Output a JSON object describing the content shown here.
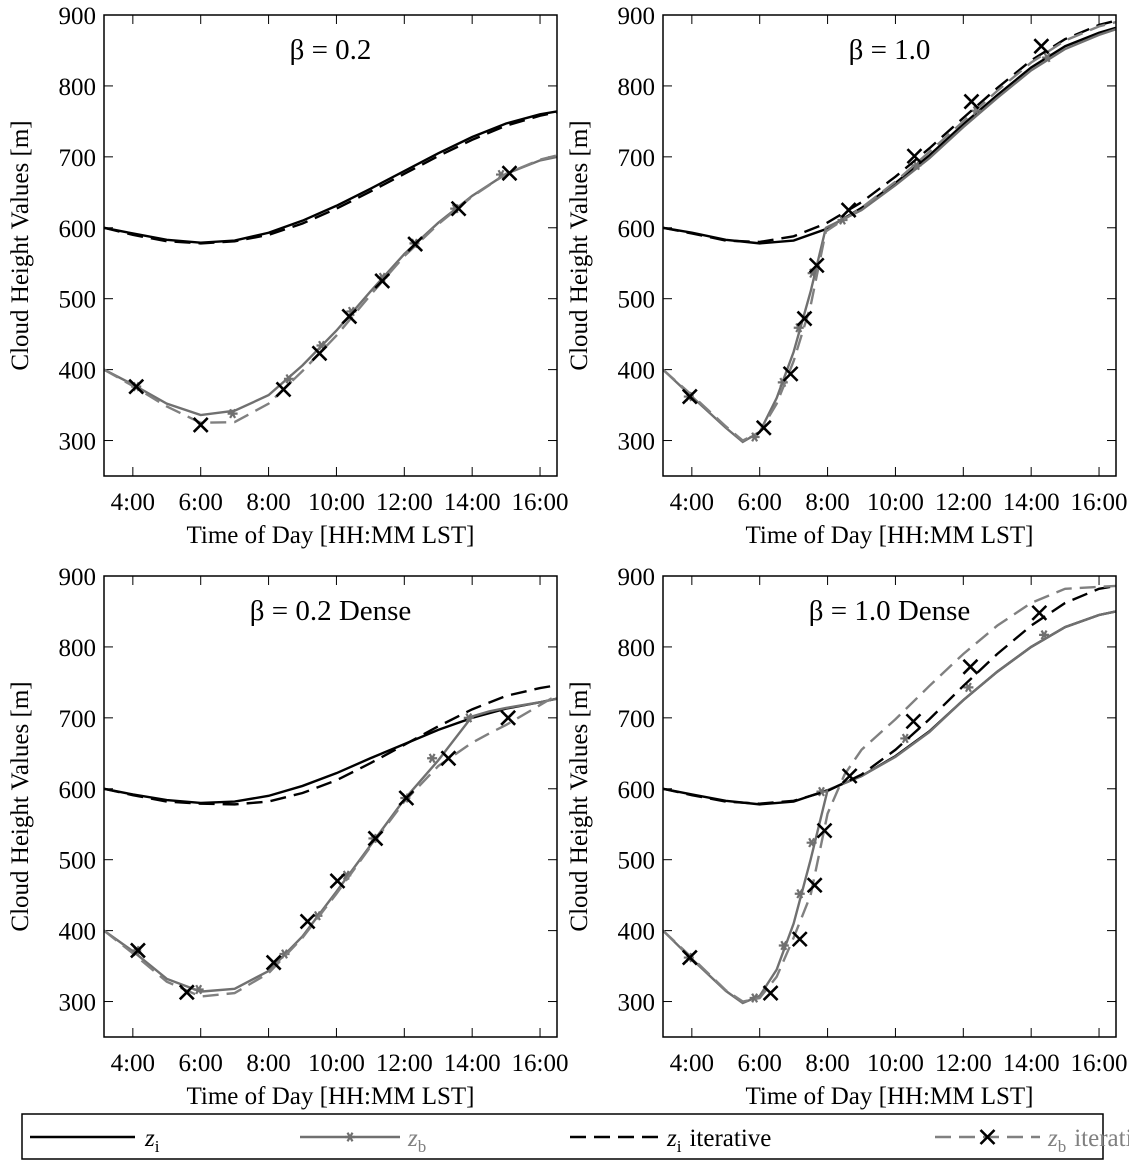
{
  "chart_data": [
    {
      "type": "line",
      "title": "β = 0.2",
      "xlabel": "Time of Day [HH:MM LST]",
      "ylabel": "Cloud Height Values [m]",
      "xlim": [
        3.15,
        16.5
      ],
      "xticks": [
        {
          "value": 4,
          "label": "4:00"
        },
        {
          "value": 6,
          "label": "6:00"
        },
        {
          "value": 8,
          "label": "8:00"
        },
        {
          "value": 10,
          "label": "10:00"
        },
        {
          "value": 12,
          "label": "12:00"
        },
        {
          "value": 14,
          "label": "14:00"
        },
        {
          "value": 16,
          "label": "16:00"
        }
      ],
      "ylim": [
        250,
        900
      ],
      "yticks": [
        300,
        400,
        500,
        600,
        700,
        800,
        900
      ],
      "series": [
        {
          "x": [
            3.15,
            4,
            5,
            6,
            7,
            8,
            9,
            10,
            11,
            12,
            13,
            14,
            15,
            16,
            16.5
          ],
          "values": [
            600,
            592,
            583,
            579,
            582,
            593,
            610,
            631,
            655,
            680,
            705,
            728,
            747,
            760,
            764
          ]
        },
        {
          "x": [
            3.15,
            4,
            5,
            6,
            7,
            8,
            9,
            10,
            11,
            12,
            13,
            14,
            15,
            16,
            16.5
          ],
          "values": [
            400,
            379,
            352,
            336,
            342,
            364,
            406,
            455,
            510,
            563,
            607,
            645,
            676,
            695,
            700
          ],
          "points": {
            "x": [
              4.1,
              6.94,
              8.6,
              9.56,
              10.44,
              11.35,
              12.3,
              13.5,
              14.85
            ],
            "values": [
              376,
              338,
              387,
              434,
              482,
              530,
              578,
              627,
              675
            ]
          }
        },
        {
          "x": [
            3.15,
            4,
            5,
            6,
            7,
            8,
            9,
            10,
            11,
            12,
            13,
            14,
            15,
            16,
            16.5
          ],
          "values": [
            600,
            590,
            581,
            578,
            581,
            590,
            606,
            627,
            651,
            676,
            701,
            724,
            744,
            758,
            763
          ]
        },
        {
          "x": [
            3.15,
            4,
            5,
            6,
            7,
            8,
            9,
            10,
            11,
            12,
            13,
            14,
            15,
            16,
            16.5
          ],
          "values": [
            400,
            377,
            348,
            325,
            326,
            352,
            398,
            448,
            505,
            560,
            605,
            644,
            676,
            696,
            702
          ],
          "points": {
            "x": [
              4.1,
              6.0,
              8.44,
              9.5,
              10.38,
              11.35,
              12.32,
              13.6,
              15.1
            ],
            "values": [
              376,
              322,
              372,
              423,
              475,
              525,
              577,
              627,
              677
            ]
          }
        }
      ]
    },
    {
      "type": "line",
      "title": "β = 1.0",
      "xlabel": "Time of Day [HH:MM LST]",
      "ylabel": "Cloud Height Values [m]",
      "xlim": [
        3.15,
        16.5
      ],
      "xticks": [
        {
          "value": 4,
          "label": "4:00"
        },
        {
          "value": 6,
          "label": "6:00"
        },
        {
          "value": 8,
          "label": "8:00"
        },
        {
          "value": 10,
          "label": "10:00"
        },
        {
          "value": 12,
          "label": "12:00"
        },
        {
          "value": 14,
          "label": "14:00"
        },
        {
          "value": 16,
          "label": "16:00"
        }
      ],
      "ylim": [
        250,
        900
      ],
      "yticks": [
        300,
        400,
        500,
        600,
        700,
        800,
        900
      ],
      "series": [
        {
          "x": [
            3.15,
            4,
            5,
            6,
            7,
            7.95,
            9,
            10,
            11,
            12,
            13,
            14,
            15,
            16,
            16.5
          ],
          "values": [
            600,
            593,
            583,
            578,
            582,
            598,
            628,
            663,
            702,
            746,
            787,
            826,
            856,
            875,
            882
          ]
        },
        {
          "x": [
            3.15,
            4,
            5,
            5.5,
            6,
            6.5,
            7,
            7.5,
            7.95,
            9,
            10,
            11,
            12,
            13,
            14,
            15,
            16,
            16.5
          ],
          "values": [
            400,
            362,
            318,
            298,
            312,
            360,
            425,
            510,
            600,
            625,
            660,
            698,
            742,
            783,
            822,
            852,
            872,
            880
          ],
          "points": {
            "x": [
              3.91,
              5.85,
              6.68,
              7.15,
              7.56,
              8.44,
              10.62,
              12.38,
              14.47
            ],
            "values": [
              362,
              305,
              382,
              459,
              536,
              611,
              688,
              765,
              840
            ]
          }
        },
        {
          "x": [
            3.15,
            4,
            5,
            6,
            7,
            7.95,
            9,
            10,
            11,
            12,
            13,
            14,
            15,
            16,
            16.5
          ],
          "values": [
            600,
            592,
            582,
            580,
            588,
            606,
            636,
            672,
            712,
            755,
            797,
            836,
            866,
            886,
            892
          ]
        },
        {
          "x": [
            3.15,
            4,
            5,
            5.5,
            6,
            6.5,
            7,
            7.5,
            7.95,
            9,
            10,
            11,
            12,
            13,
            14,
            15,
            16,
            16.5
          ],
          "values": [
            400,
            364,
            320,
            300,
            312,
            352,
            412,
            490,
            595,
            628,
            665,
            707,
            750,
            793,
            833,
            864,
            884,
            890
          ],
          "points": {
            "x": [
              3.94,
              6.12,
              6.91,
              7.32,
              7.68,
              8.62,
              10.56,
              12.24,
              14.3
            ],
            "values": [
              362,
              318,
              394,
              472,
              547,
              625,
              701,
              778,
              856
            ]
          }
        }
      ]
    },
    {
      "type": "line",
      "title": "β = 0.2 Dense",
      "xlabel": "Time of Day [HH:MM LST]",
      "ylabel": "Cloud Height Values [m]",
      "xlim": [
        3.15,
        16.5
      ],
      "xticks": [
        {
          "value": 4,
          "label": "4:00"
        },
        {
          "value": 6,
          "label": "6:00"
        },
        {
          "value": 8,
          "label": "8:00"
        },
        {
          "value": 10,
          "label": "10:00"
        },
        {
          "value": 12,
          "label": "12:00"
        },
        {
          "value": 14,
          "label": "14:00"
        },
        {
          "value": 16,
          "label": "16:00"
        }
      ],
      "ylim": [
        250,
        900
      ],
      "yticks": [
        300,
        400,
        500,
        600,
        700,
        800,
        900
      ],
      "series": [
        {
          "x": [
            3.15,
            4,
            5,
            6,
            7,
            8,
            9,
            10,
            11,
            12,
            13,
            14,
            15,
            16,
            16.5
          ],
          "values": [
            600,
            592,
            584,
            580,
            582,
            590,
            604,
            622,
            643,
            663,
            683,
            700,
            713,
            722,
            727
          ]
        },
        {
          "x": [
            3.15,
            4,
            5,
            6,
            7,
            8,
            9,
            10,
            11,
            12,
            13,
            14,
            14.5,
            15,
            16,
            16.5
          ],
          "values": [
            400,
            371,
            332,
            314,
            318,
            343,
            392,
            455,
            520,
            585,
            640,
            702,
            709,
            714,
            722,
            727
          ],
          "points": {
            "x": [
              4.1,
              5.94,
              8.47,
              9.44,
              10.29,
              11.09,
              12.03,
              12.82,
              13.9
            ],
            "values": [
              372,
              317,
              367,
              421,
              478,
              530,
              587,
              643,
              700
            ]
          }
        },
        {
          "x": [
            3.15,
            4,
            5,
            6,
            7,
            8,
            9,
            10,
            11,
            12,
            13,
            14,
            15,
            16,
            16.5
          ],
          "values": [
            600,
            591,
            582,
            579,
            578,
            582,
            594,
            612,
            636,
            662,
            688,
            712,
            731,
            742,
            746
          ]
        },
        {
          "x": [
            3.15,
            4,
            5,
            6,
            7,
            8,
            9,
            10,
            11,
            12,
            13,
            14,
            14.5,
            15,
            16,
            16.5
          ],
          "values": [
            400,
            368,
            328,
            307,
            312,
            340,
            390,
            452,
            518,
            582,
            632,
            665,
            678,
            690,
            718,
            732
          ],
          "points": {
            "x": [
              4.15,
              5.59,
              8.15,
              9.15,
              10.03,
              11.15,
              12.06,
              13.3,
              15.06
            ],
            "values": [
              372,
              313,
              355,
              413,
              470,
              530,
              587,
              643,
              700
            ]
          }
        }
      ]
    },
    {
      "type": "line",
      "title": "β = 1.0 Dense",
      "xlabel": "Time of Day [HH:MM LST]",
      "ylabel": "Cloud Height Values [m]",
      "xlim": [
        3.15,
        16.5
      ],
      "xticks": [
        {
          "value": 4,
          "label": "4:00"
        },
        {
          "value": 6,
          "label": "6:00"
        },
        {
          "value": 8,
          "label": "8:00"
        },
        {
          "value": 10,
          "label": "10:00"
        },
        {
          "value": 12,
          "label": "12:00"
        },
        {
          "value": 14,
          "label": "14:00"
        },
        {
          "value": 16,
          "label": "16:00"
        }
      ],
      "ylim": [
        250,
        900
      ],
      "yticks": [
        300,
        400,
        500,
        600,
        700,
        800,
        900
      ],
      "series": [
        {
          "x": [
            3.15,
            4,
            5,
            6,
            7,
            8,
            9,
            10,
            11,
            12,
            13,
            14,
            15,
            16,
            16.5
          ],
          "values": [
            600,
            592,
            583,
            578,
            582,
            598,
            618,
            646,
            681,
            725,
            765,
            800,
            828,
            845,
            850
          ]
        },
        {
          "x": [
            3.15,
            4,
            5,
            5.5,
            6,
            6.5,
            7,
            7.5,
            8,
            9,
            10,
            11,
            12,
            13,
            14,
            15,
            16,
            16.5
          ],
          "values": [
            400,
            360,
            315,
            298,
            308,
            345,
            410,
            500,
            598,
            618,
            645,
            680,
            725,
            765,
            800,
            828,
            845,
            850
          ],
          "points": {
            "x": [
              3.91,
              5.85,
              6.71,
              7.18,
              7.53,
              7.82,
              10.29,
              12.15,
              14.38
            ],
            "values": [
              362,
              305,
              379,
              452,
              524,
              596,
              671,
              743,
              817
            ]
          }
        },
        {
          "x": [
            3.15,
            4,
            5,
            6,
            7,
            8,
            9,
            10,
            11,
            12,
            13,
            14,
            15,
            16,
            16.5
          ],
          "values": [
            600,
            591,
            582,
            579,
            583,
            597,
            620,
            655,
            698,
            745,
            790,
            830,
            862,
            882,
            886
          ]
        },
        {
          "x": [
            3.15,
            4,
            5,
            5.5,
            6,
            6.5,
            7,
            7.5,
            8,
            8.5,
            9,
            10,
            11,
            12,
            13,
            14,
            15,
            16.5
          ],
          "values": [
            400,
            362,
            316,
            300,
            305,
            335,
            390,
            450,
            565,
            620,
            655,
            698,
            745,
            790,
            830,
            862,
            882,
            886
          ],
          "points": {
            "x": [
              3.94,
              6.32,
              7.18,
              7.62,
              7.91,
              8.65,
              10.53,
              12.21,
              14.24
            ],
            "values": [
              362,
              312,
              388,
              464,
              541,
              618,
              695,
              772,
              848
            ]
          }
        }
      ]
    }
  ],
  "legend": [
    {
      "symbol": "z",
      "subscript": "i",
      "color": "#000000",
      "text_color": "#000000",
      "dash": false
    },
    {
      "symbol": "z",
      "subscript": "b",
      "color": "#707070",
      "text_color": "#808080",
      "dash": false,
      "marker": "star"
    },
    {
      "symbol": "z",
      "subscript": "i",
      "suffix": "iterative",
      "color": "#000000",
      "text_color": "#000000",
      "dash": true
    },
    {
      "symbol": "z",
      "subscript": "b",
      "suffix": "iterative",
      "color": "#808080",
      "text_color": "#808080",
      "dash": true,
      "marker": "x"
    }
  ]
}
